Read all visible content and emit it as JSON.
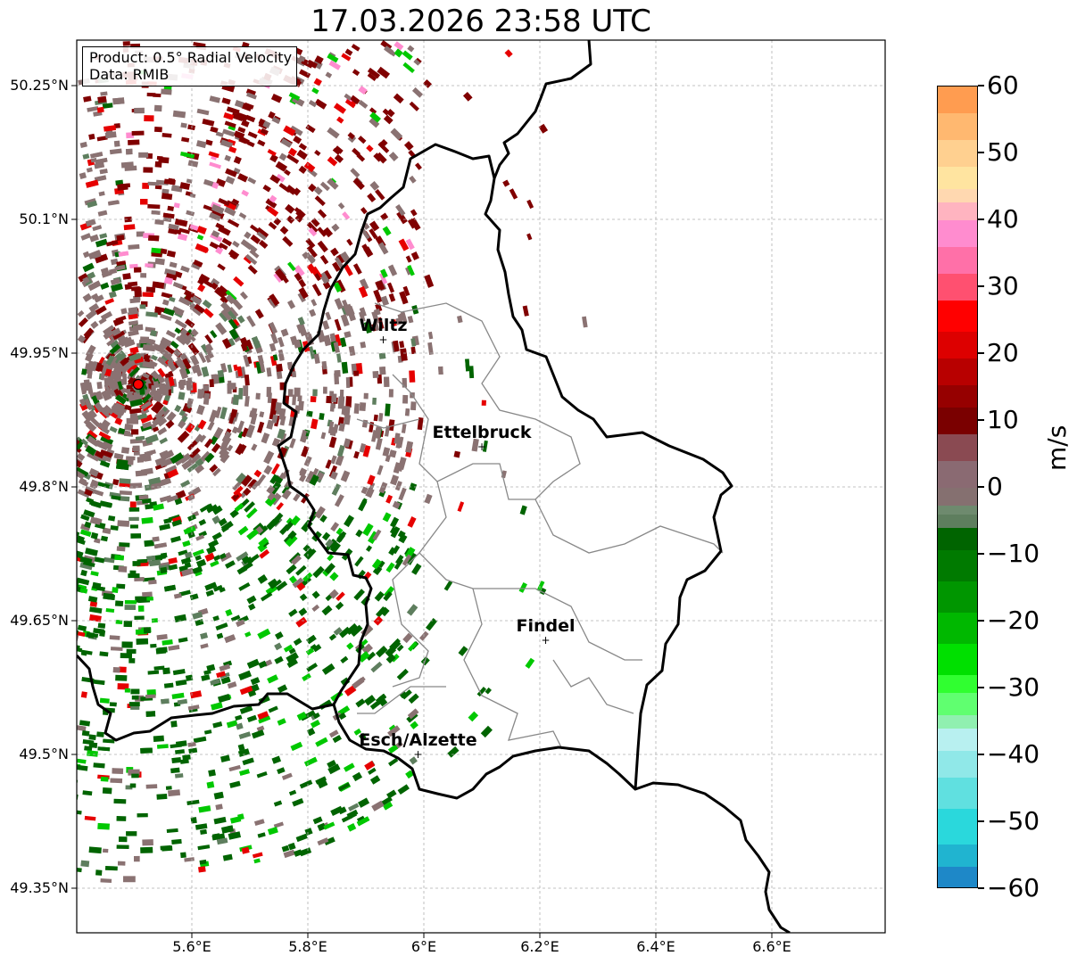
{
  "title": "17.03.2026 23:58 UTC",
  "legend": {
    "product": "Product: 0.5° Radial Velocity",
    "data": "Data: RMIB"
  },
  "map": {
    "x_ticks": [
      "5.6°E",
      "5.8°E",
      "6°E",
      "6.2°E",
      "6.4°E",
      "6.6°E"
    ],
    "y_ticks": [
      "50.25°N",
      "50.1°N",
      "49.95°N",
      "49.8°N",
      "49.65°N",
      "49.5°N",
      "49.35°N"
    ],
    "cities": [
      {
        "name": "Wiltz",
        "lon": 5.93,
        "lat": 49.965
      },
      {
        "name": "Ettelbruck",
        "lon": 6.1,
        "lat": 49.845
      },
      {
        "name": "Findel",
        "lon": 6.21,
        "lat": 49.628
      },
      {
        "name": "Esch/Alzette",
        "lon": 5.99,
        "lat": 49.5
      }
    ],
    "radar_site": {
      "lon": 5.505,
      "lat": 49.914
    }
  },
  "colorbar": {
    "unit": "m/s",
    "ticks": [
      "60",
      "50",
      "40",
      "30",
      "20",
      "10",
      "0",
      "−10",
      "−20",
      "−30",
      "−40",
      "−50",
      "−60"
    ],
    "colors": {
      "cyan": "#2ad8dc",
      "dark_green": "#006400",
      "green": "#00c800",
      "gray": "#8a7272",
      "dark_red": "#800000",
      "red": "#e60000",
      "pink": "#ff8ccf",
      "orange": "#ff9c50"
    }
  }
}
